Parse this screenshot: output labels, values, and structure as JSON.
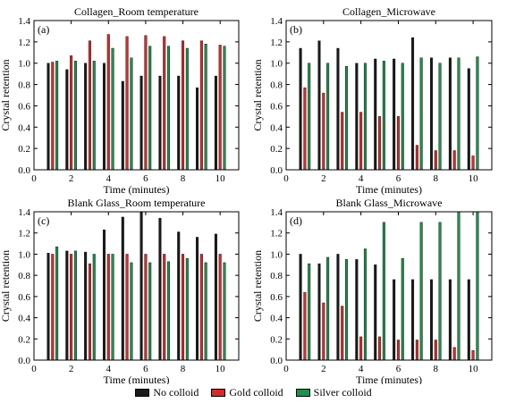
{
  "colors": {
    "no": "#1a1a1a",
    "gold": "#d62a2a",
    "silver": "#1e8f4e"
  },
  "legend": [
    {
      "label": "No colloid",
      "color": "#1a1a1a"
    },
    {
      "label": "Gold colloid",
      "color": "#d62a2a"
    },
    {
      "label": "Silver colloid",
      "color": "#1e8f4e"
    }
  ],
  "chart_data": [
    {
      "type": "bar",
      "panel_label": "(a)",
      "title": "Collagen_Room temperature",
      "xlabel": "Time (minutes)",
      "ylabel": "Crystal retention",
      "xlim": [
        0,
        11
      ],
      "ylim": [
        0,
        1.4
      ],
      "xticks": [
        0,
        2,
        4,
        6,
        8,
        10
      ],
      "yticks": [
        0,
        0.2,
        0.4,
        0.6,
        0.8,
        1.0,
        1.2,
        1.4
      ],
      "x": [
        1,
        2,
        3,
        4,
        5,
        6,
        7,
        8,
        9,
        10
      ],
      "series": [
        {
          "name": "No colloid",
          "values": [
            1.0,
            0.94,
            1.0,
            1.0,
            0.83,
            0.88,
            0.88,
            0.88,
            0.77,
            0.88
          ]
        },
        {
          "name": "Gold colloid",
          "values": [
            1.01,
            1.07,
            1.21,
            1.27,
            1.25,
            1.26,
            1.25,
            1.21,
            1.21,
            1.17
          ]
        },
        {
          "name": "Silver colloid",
          "values": [
            1.02,
            1.02,
            1.02,
            1.14,
            1.05,
            1.16,
            1.16,
            1.14,
            1.18,
            1.16
          ]
        }
      ]
    },
    {
      "type": "bar",
      "panel_label": "(b)",
      "title": "Collagen_Microwave",
      "xlabel": "Time (minutes)",
      "ylabel": "Crystal retention",
      "xlim": [
        0,
        11
      ],
      "ylim": [
        0,
        1.4
      ],
      "xticks": [
        0,
        2,
        4,
        6,
        8,
        10
      ],
      "yticks": [
        0,
        0.2,
        0.4,
        0.6,
        0.8,
        1.0,
        1.2,
        1.4
      ],
      "x": [
        1,
        2,
        3,
        4,
        5,
        6,
        7,
        8,
        9,
        10
      ],
      "series": [
        {
          "name": "No colloid",
          "values": [
            1.14,
            1.21,
            1.14,
            1.0,
            1.04,
            1.04,
            1.24,
            1.05,
            1.05,
            0.95
          ]
        },
        {
          "name": "Gold colloid",
          "values": [
            0.77,
            0.72,
            0.54,
            0.54,
            0.5,
            0.5,
            0.23,
            0.18,
            0.18,
            0.13
          ]
        },
        {
          "name": "Silver colloid",
          "values": [
            1.0,
            1.0,
            0.97,
            1.0,
            1.02,
            1.0,
            1.05,
            1.0,
            1.05,
            1.06
          ]
        }
      ]
    },
    {
      "type": "bar",
      "panel_label": "(c)",
      "title": "Blank Glass_Room temperature",
      "xlabel": "Time (minutes)",
      "ylabel": "Crystal retention",
      "xlim": [
        0,
        11
      ],
      "ylim": [
        0,
        1.4
      ],
      "xticks": [
        0,
        2,
        4,
        6,
        8,
        10
      ],
      "yticks": [
        0,
        0.2,
        0.4,
        0.6,
        0.8,
        1.0,
        1.2,
        1.4
      ],
      "x": [
        1,
        2,
        3,
        4,
        5,
        6,
        7,
        8,
        9,
        10
      ],
      "series": [
        {
          "name": "No colloid",
          "values": [
            1.01,
            1.03,
            1.02,
            1.23,
            1.35,
            1.4,
            1.34,
            1.21,
            1.16,
            1.19
          ]
        },
        {
          "name": "Gold colloid",
          "values": [
            1.0,
            1.0,
            0.91,
            1.0,
            1.0,
            1.0,
            1.0,
            1.0,
            1.0,
            1.0
          ]
        },
        {
          "name": "Silver colloid",
          "values": [
            1.07,
            1.03,
            1.0,
            1.0,
            0.92,
            0.92,
            0.93,
            0.96,
            0.92,
            0.92
          ]
        }
      ]
    },
    {
      "type": "bar",
      "panel_label": "(d)",
      "title": "Blank Glass_Microwave",
      "xlabel": "Time (minutes)",
      "ylabel": "Crystal retention",
      "xlim": [
        0,
        11
      ],
      "ylim": [
        0,
        1.4
      ],
      "xticks": [
        0,
        2,
        4,
        6,
        8,
        10
      ],
      "yticks": [
        0,
        0.2,
        0.4,
        0.6,
        0.8,
        1.0,
        1.2,
        1.4
      ],
      "x": [
        1,
        2,
        3,
        4,
        5,
        6,
        7,
        8,
        9,
        10
      ],
      "series": [
        {
          "name": "No colloid",
          "values": [
            1.0,
            0.91,
            1.0,
            0.95,
            0.9,
            0.76,
            0.76,
            0.76,
            0.76,
            0.76
          ]
        },
        {
          "name": "Gold colloid",
          "values": [
            0.64,
            0.54,
            0.51,
            0.22,
            0.22,
            0.19,
            0.19,
            0.19,
            0.12,
            0.09
          ]
        },
        {
          "name": "Silver colloid",
          "values": [
            0.91,
            0.97,
            0.95,
            1.05,
            1.3,
            0.96,
            1.3,
            1.3,
            1.4,
            1.4
          ]
        }
      ]
    }
  ]
}
